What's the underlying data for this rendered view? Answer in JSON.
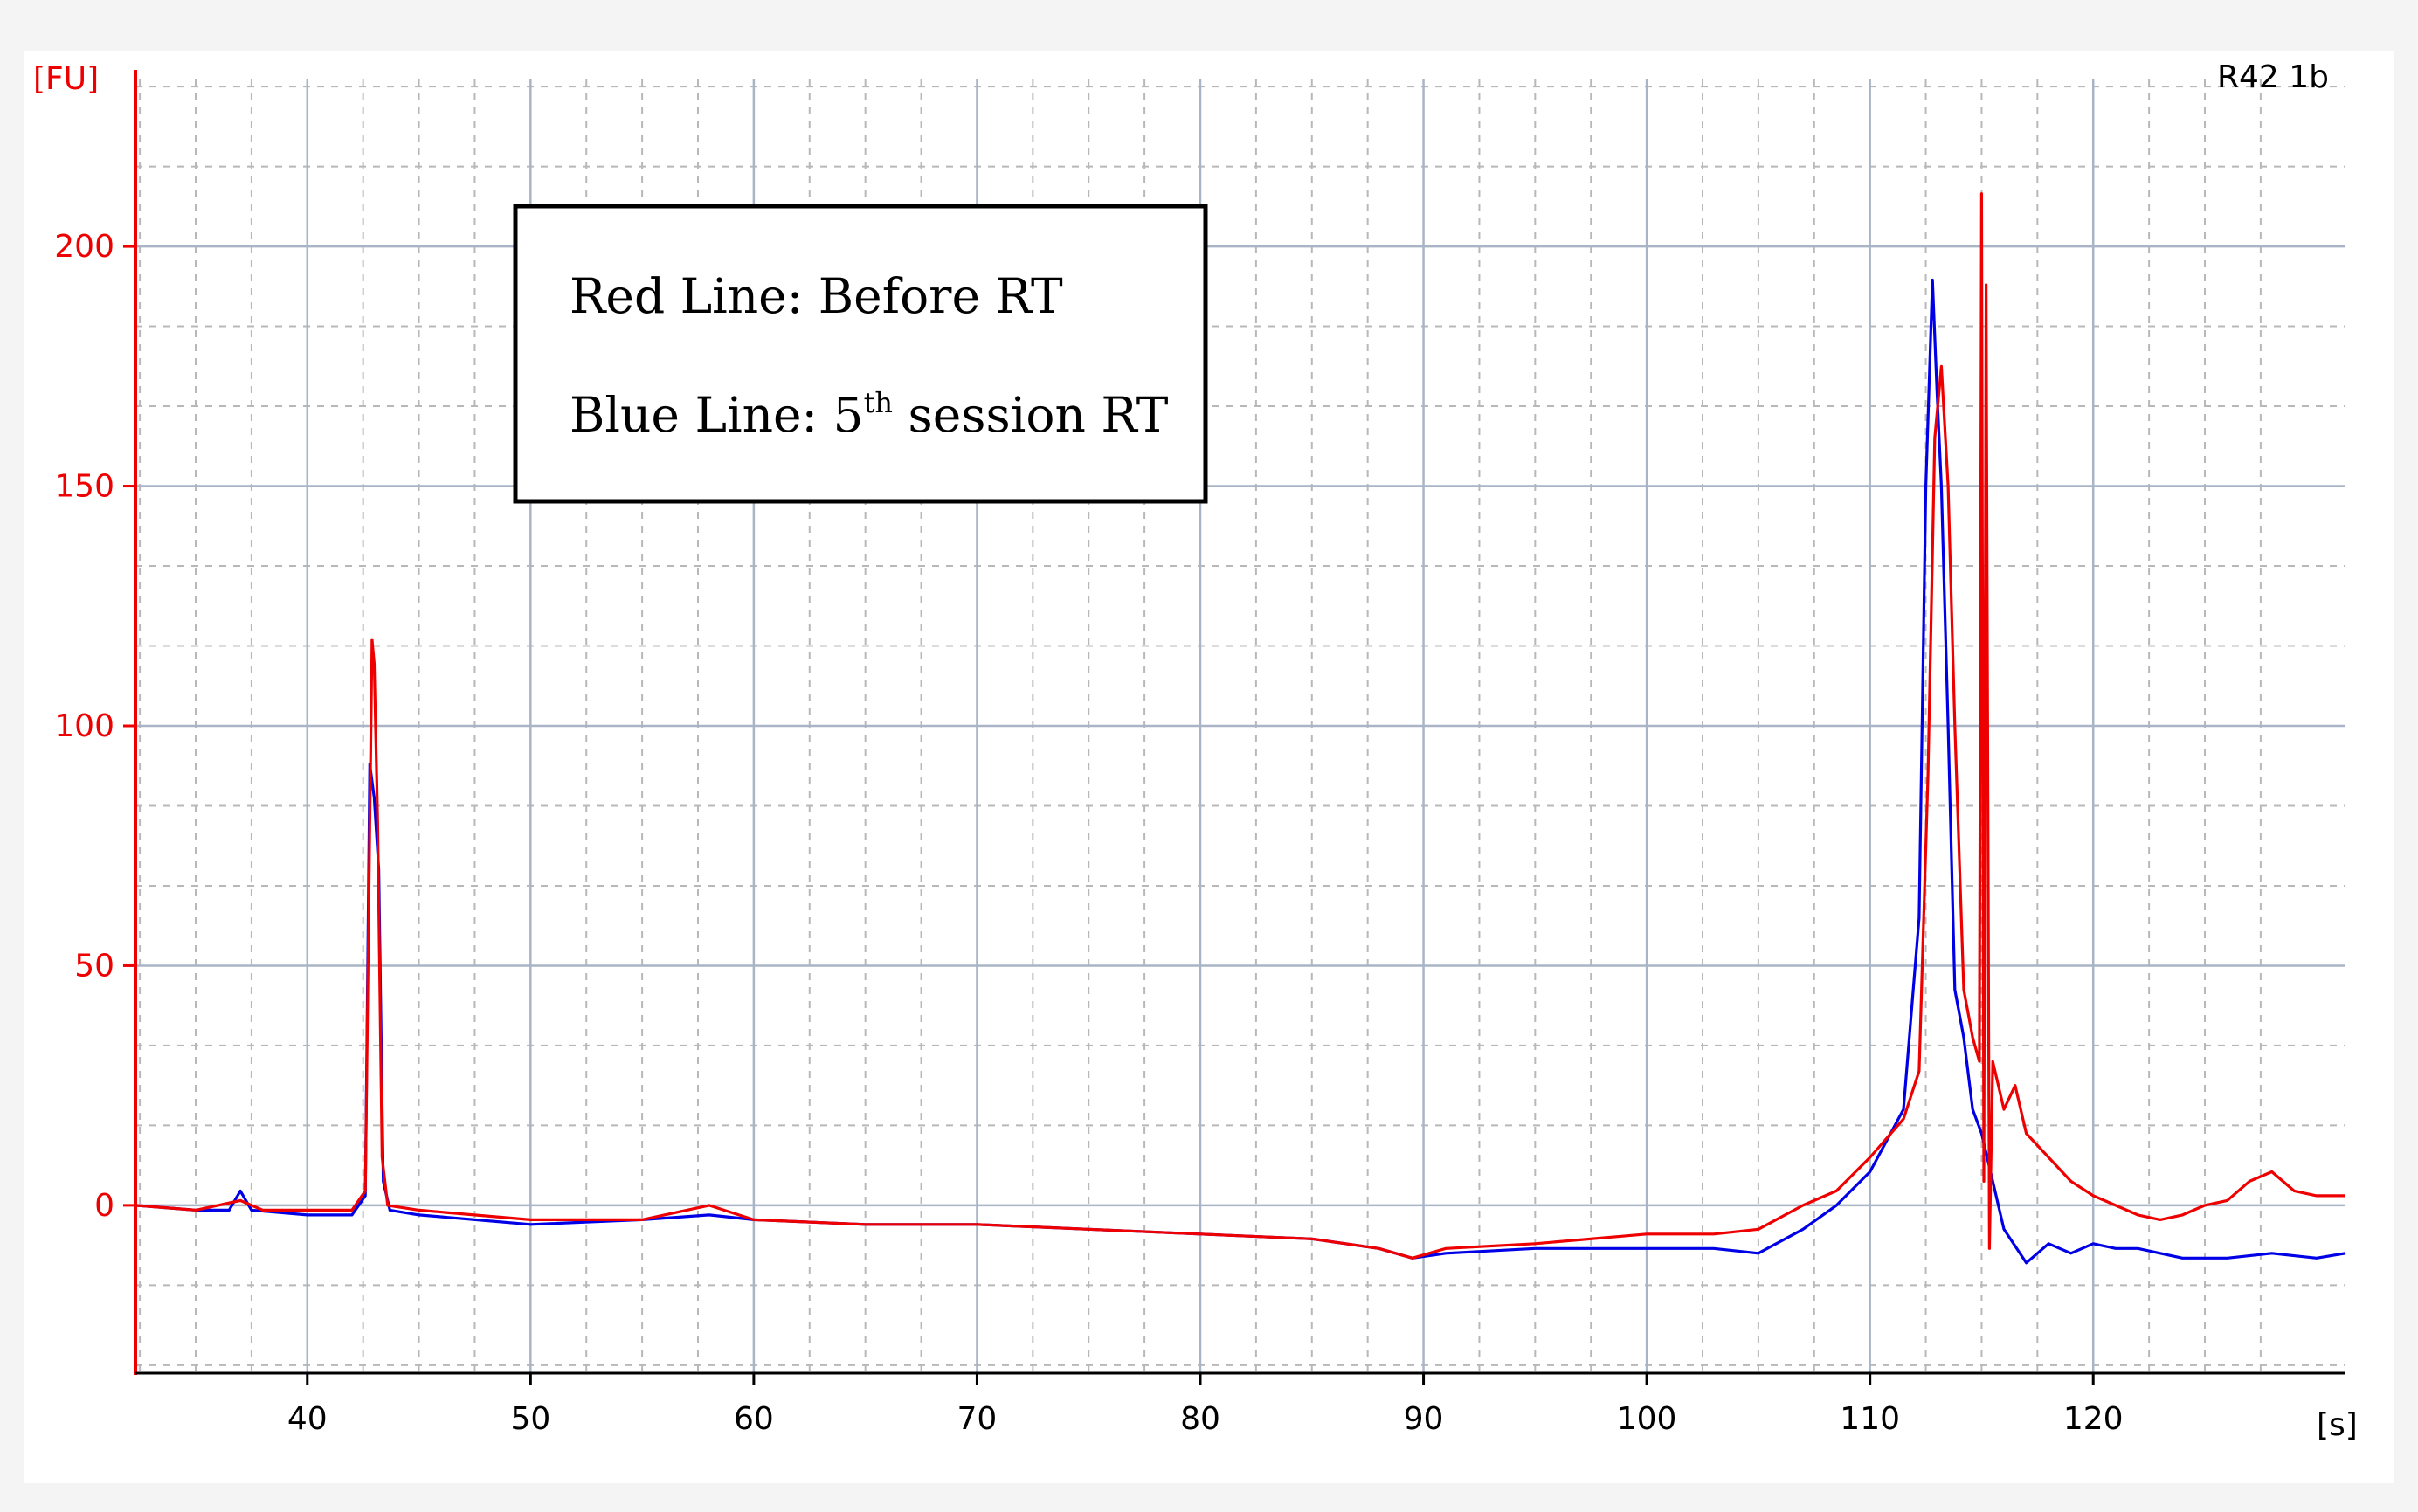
{
  "chart_data": {
    "type": "line",
    "label": "R42 1b",
    "y_unit": "[FU]",
    "x_unit": "[s]",
    "xlim": [
      32.3,
      131.3
    ],
    "ylim": [
      -35,
      235
    ],
    "x_ticks": [
      40,
      50,
      60,
      70,
      80,
      90,
      100,
      110,
      120
    ],
    "y_ticks": [
      0,
      50,
      100,
      150,
      200
    ],
    "grid": true,
    "legend_lines": [
      {
        "text": "Red Line: Before RT",
        "sup": ""
      },
      {
        "text_before": "Blue Line: 5",
        "sup": "th",
        "text_after": " session RT"
      }
    ],
    "colors": {
      "red": "#ee0000",
      "blue": "#0000e6",
      "axis_y": "#ee0000"
    },
    "series": [
      {
        "color": "#ee0000",
        "x": [
          32.3,
          35,
          37,
          38,
          40,
          42,
          42.6,
          42.9,
          43.0,
          43.15,
          43.35,
          43.6,
          45,
          50,
          55,
          58,
          60,
          65,
          70,
          75,
          80,
          85,
          88,
          89.5,
          91,
          95,
          100,
          103,
          105,
          107,
          108.5,
          110,
          111.5,
          112.2,
          112.6,
          112.9,
          113.2,
          113.5,
          113.8,
          114.2,
          114.6,
          114.9,
          115.0,
          115.1,
          115.2,
          115.35,
          115.5,
          116,
          116.5,
          117,
          118,
          119,
          120,
          121,
          122,
          123,
          124,
          125,
          126,
          127,
          128,
          129,
          130,
          131.3
        ],
        "y": [
          0,
          -1,
          1,
          -1,
          -1,
          -1,
          3,
          118,
          113,
          80,
          10,
          0,
          -1,
          -3,
          -3,
          0,
          -3,
          -4,
          -4,
          -5,
          -6,
          -7,
          -9,
          -11,
          -9,
          -8,
          -6,
          -6,
          -5,
          0,
          3,
          10,
          18,
          28,
          90,
          160,
          175,
          150,
          100,
          45,
          35,
          30,
          211,
          5,
          192,
          -9,
          30,
          20,
          25,
          15,
          10,
          5,
          2,
          0,
          -2,
          -3,
          -2,
          0,
          1,
          5,
          7,
          3,
          2,
          2
        ]
      },
      {
        "color": "#0000e6",
        "x": [
          32.3,
          35,
          36.5,
          37,
          37.5,
          40,
          42,
          42.6,
          42.8,
          43.0,
          43.2,
          43.4,
          43.7,
          45,
          50,
          55,
          58,
          60,
          65,
          70,
          75,
          80,
          85,
          88,
          89.5,
          91,
          95,
          100,
          103,
          105,
          107,
          108.5,
          110,
          111.5,
          112.2,
          112.5,
          112.8,
          113.0,
          113.2,
          113.5,
          113.8,
          114.2,
          114.6,
          115,
          115.5,
          116,
          117,
          118,
          119,
          120,
          121,
          122,
          124,
          126,
          128,
          130,
          131.3
        ],
        "y": [
          0,
          -1,
          -1,
          3,
          -1,
          -2,
          -2,
          2,
          92,
          85,
          70,
          5,
          -1,
          -2,
          -4,
          -3,
          -2,
          -3,
          -4,
          -4,
          -5,
          -6,
          -7,
          -9,
          -11,
          -10,
          -9,
          -9,
          -9,
          -10,
          -5,
          0,
          7,
          20,
          60,
          150,
          193,
          170,
          150,
          100,
          45,
          35,
          20,
          15,
          5,
          -5,
          -12,
          -8,
          -10,
          -8,
          -9,
          -9,
          -11,
          -11,
          -10,
          -11,
          -10
        ]
      }
    ]
  }
}
